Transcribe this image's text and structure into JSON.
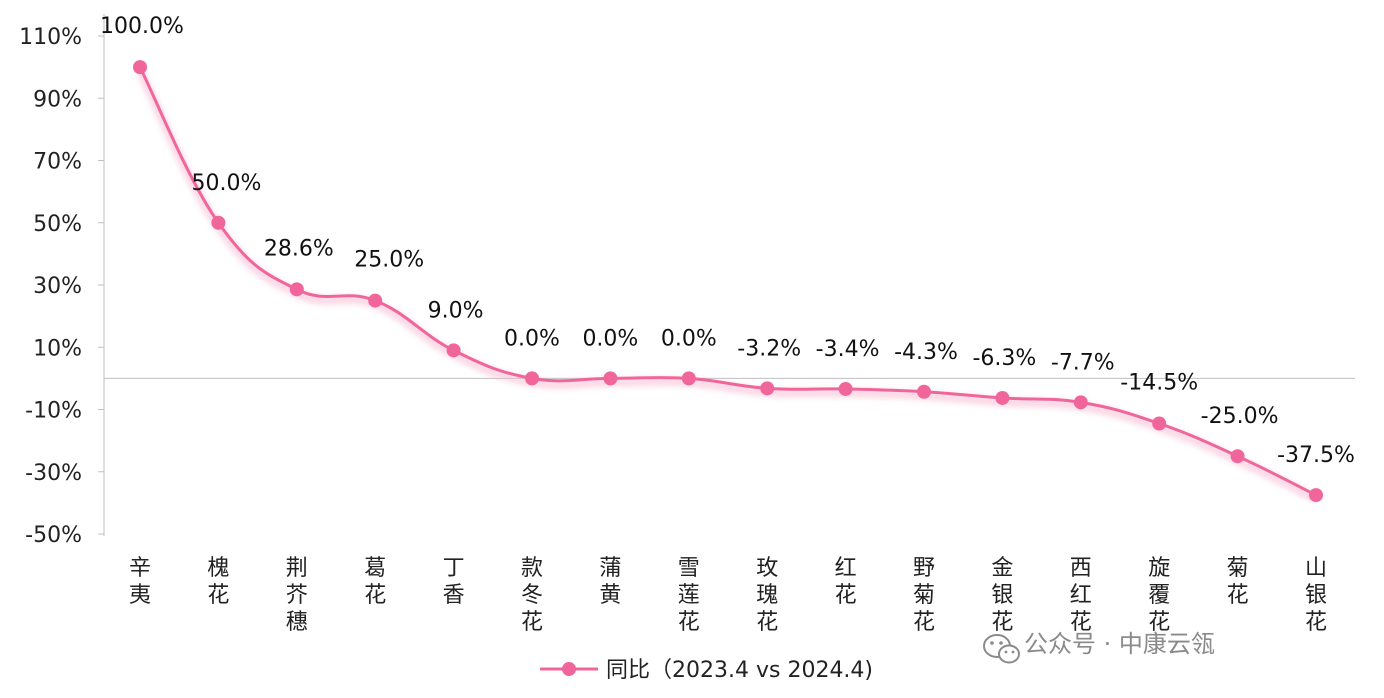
{
  "chart_data": {
    "type": "line",
    "categories": [
      "辛夷",
      "槐花",
      "荆芥穗",
      "葛花",
      "丁香",
      "款冬花",
      "蒲黄",
      "雪莲花",
      "玫瑰花",
      "红花",
      "野菊花",
      "金银花",
      "西红花",
      "旋覆花",
      "菊花",
      "山银花"
    ],
    "series": [
      {
        "name": "同比（2023.4 vs 2024.4)",
        "values": [
          100.0,
          50.0,
          28.6,
          25.0,
          9.0,
          0.0,
          0.0,
          0.0,
          -3.2,
          -3.4,
          -4.3,
          -6.3,
          -7.7,
          -14.5,
          -25.0,
          -37.5
        ],
        "data_labels": [
          "100.0%",
          "50.0%",
          "28.6%",
          "25.0%",
          "9.0%",
          "0.0%",
          "0.0%",
          "0.0%",
          "-3.2%",
          "-3.4%",
          "-4.3%",
          "-6.3%",
          "-7.7%",
          "-14.5%",
          "-25.0%",
          "-37.5%"
        ],
        "color": "#f0669a"
      }
    ],
    "ylim": [
      -50,
      110
    ],
    "yticks": [
      110,
      90,
      70,
      50,
      30,
      10,
      -10,
      -30,
      -50
    ],
    "ytick_labels": [
      "110%",
      "90%",
      "70%",
      "50%",
      "30%",
      "10%",
      "-10%",
      "-30%",
      "-50%"
    ],
    "grid": false,
    "legend": "bottom",
    "axis_color": "#bfbfbf"
  },
  "watermark": {
    "icon": "wechat-icon",
    "text": "公众号 · 中康云瓴"
  }
}
